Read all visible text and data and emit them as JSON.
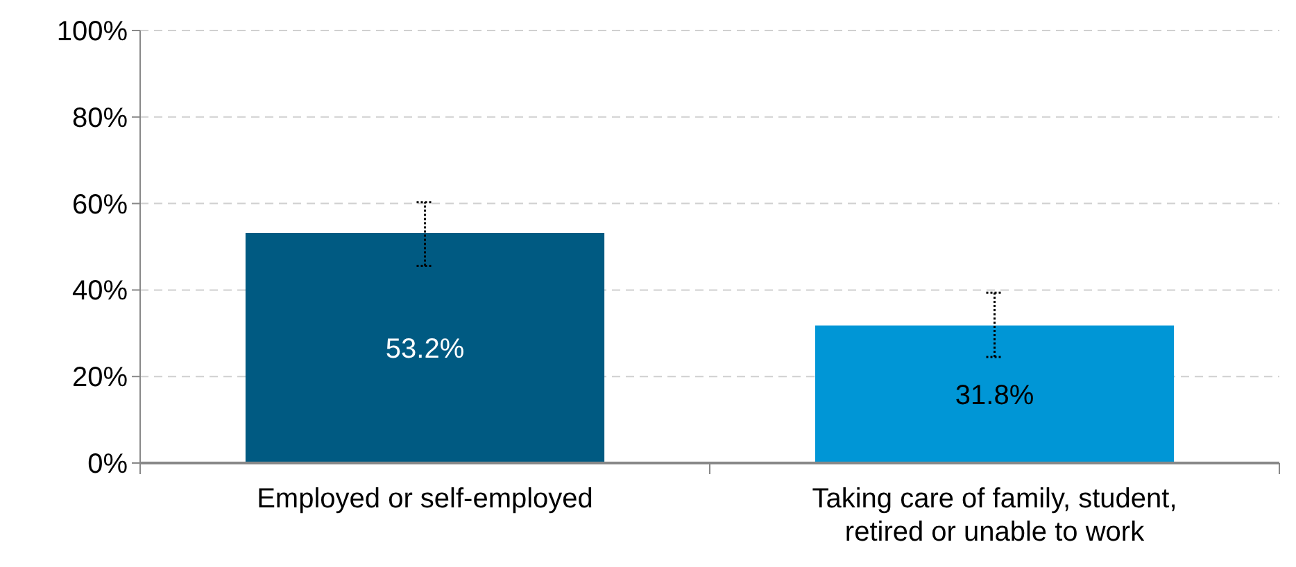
{
  "chart_data": {
    "type": "bar",
    "categories": [
      "Employed or self-employed",
      "Taking care of family, student, retired or unable to work"
    ],
    "values": [
      53.2,
      31.8
    ],
    "colors": [
      "#005a82",
      "#0096d6"
    ],
    "value_labels": [
      "53.2%",
      "31.8%"
    ],
    "errors": [
      [
        45.6,
        60.3
      ],
      [
        24.5,
        39.4
      ]
    ],
    "ylim": [
      0,
      100
    ],
    "yticks": [
      {
        "value": 0,
        "label": "0%"
      },
      {
        "value": 20,
        "label": "20%"
      },
      {
        "value": 40,
        "label": "40%"
      },
      {
        "value": 60,
        "label": "60%"
      },
      {
        "value": 80,
        "label": "80%"
      },
      {
        "value": 100,
        "label": "100%"
      }
    ],
    "grid": "y"
  }
}
